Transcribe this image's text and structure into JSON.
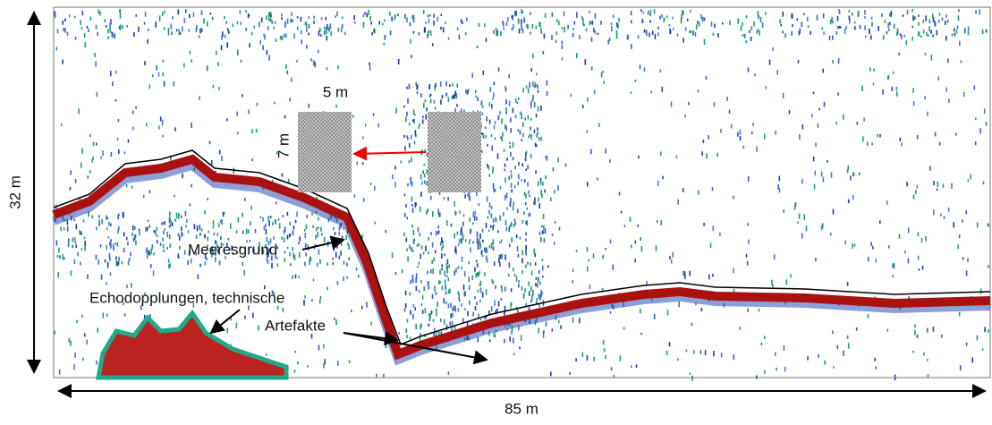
{
  "depth_label": "32 m",
  "length_label": "85 m",
  "box_width_label": "5 m",
  "box_height_label": "7 m",
  "seabed_label": "Meeresgrund",
  "artifact_label_line1": "Echodopplungen, technische",
  "artifact_label_line2": "Artefakte"
}
